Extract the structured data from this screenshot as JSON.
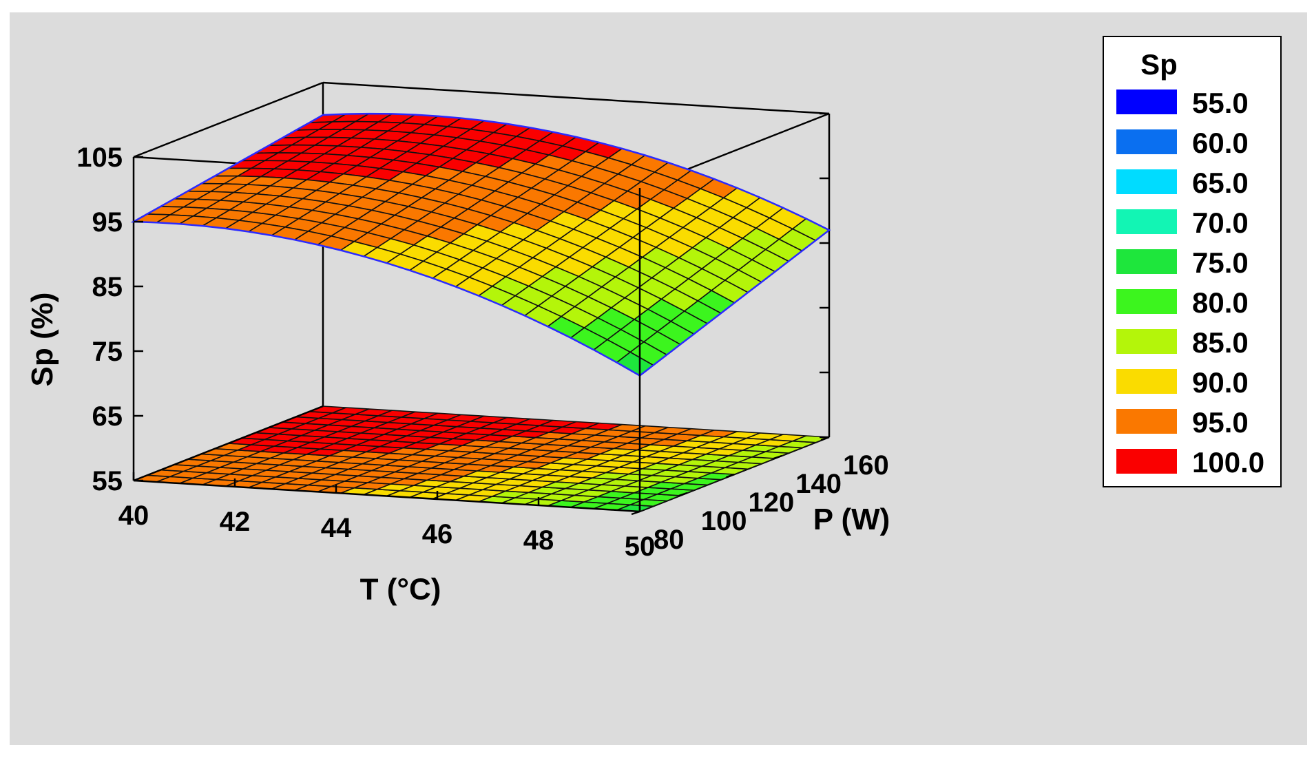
{
  "chart_data": {
    "type": "surface",
    "title": "",
    "xlabel": "T (°C)",
    "ylabel": "P (W)",
    "zlabel": "Sp (%)",
    "x_ticks": [
      "40",
      "42",
      "44",
      "46",
      "48",
      "50"
    ],
    "y_ticks": [
      "80",
      "100",
      "120",
      "140",
      "160"
    ],
    "z_ticks": [
      "55",
      "65",
      "75",
      "85",
      "95",
      "105"
    ],
    "xlim": [
      40,
      50
    ],
    "ylim": [
      80,
      160
    ],
    "zlim": [
      55,
      105
    ],
    "contour_projection": true,
    "corner_values": [
      {
        "T": 40,
        "P": 80,
        "Sp": 95
      },
      {
        "T": 40,
        "P": 160,
        "Sp": 100
      },
      {
        "T": 50,
        "P": 80,
        "Sp": 76
      },
      {
        "T": 50,
        "P": 160,
        "Sp": 89
      }
    ],
    "max_region": {
      "T": 44,
      "P": 160,
      "Sp": 103
    },
    "legend": {
      "title": "Sp",
      "levels": [
        {
          "label": "55.0",
          "color": "#0000ff"
        },
        {
          "label": "60.0",
          "color": "#0a6ff0"
        },
        {
          "label": "65.0",
          "color": "#00dcff"
        },
        {
          "label": "70.0",
          "color": "#12f5b4"
        },
        {
          "label": "75.0",
          "color": "#1ee63c"
        },
        {
          "label": "80.0",
          "color": "#3cf51e"
        },
        {
          "label": "85.0",
          "color": "#b4f50a"
        },
        {
          "label": "90.0",
          "color": "#fadc00"
        },
        {
          "label": "95.0",
          "color": "#fa7800"
        },
        {
          "label": "100.0",
          "color": "#fa0000"
        }
      ]
    }
  }
}
